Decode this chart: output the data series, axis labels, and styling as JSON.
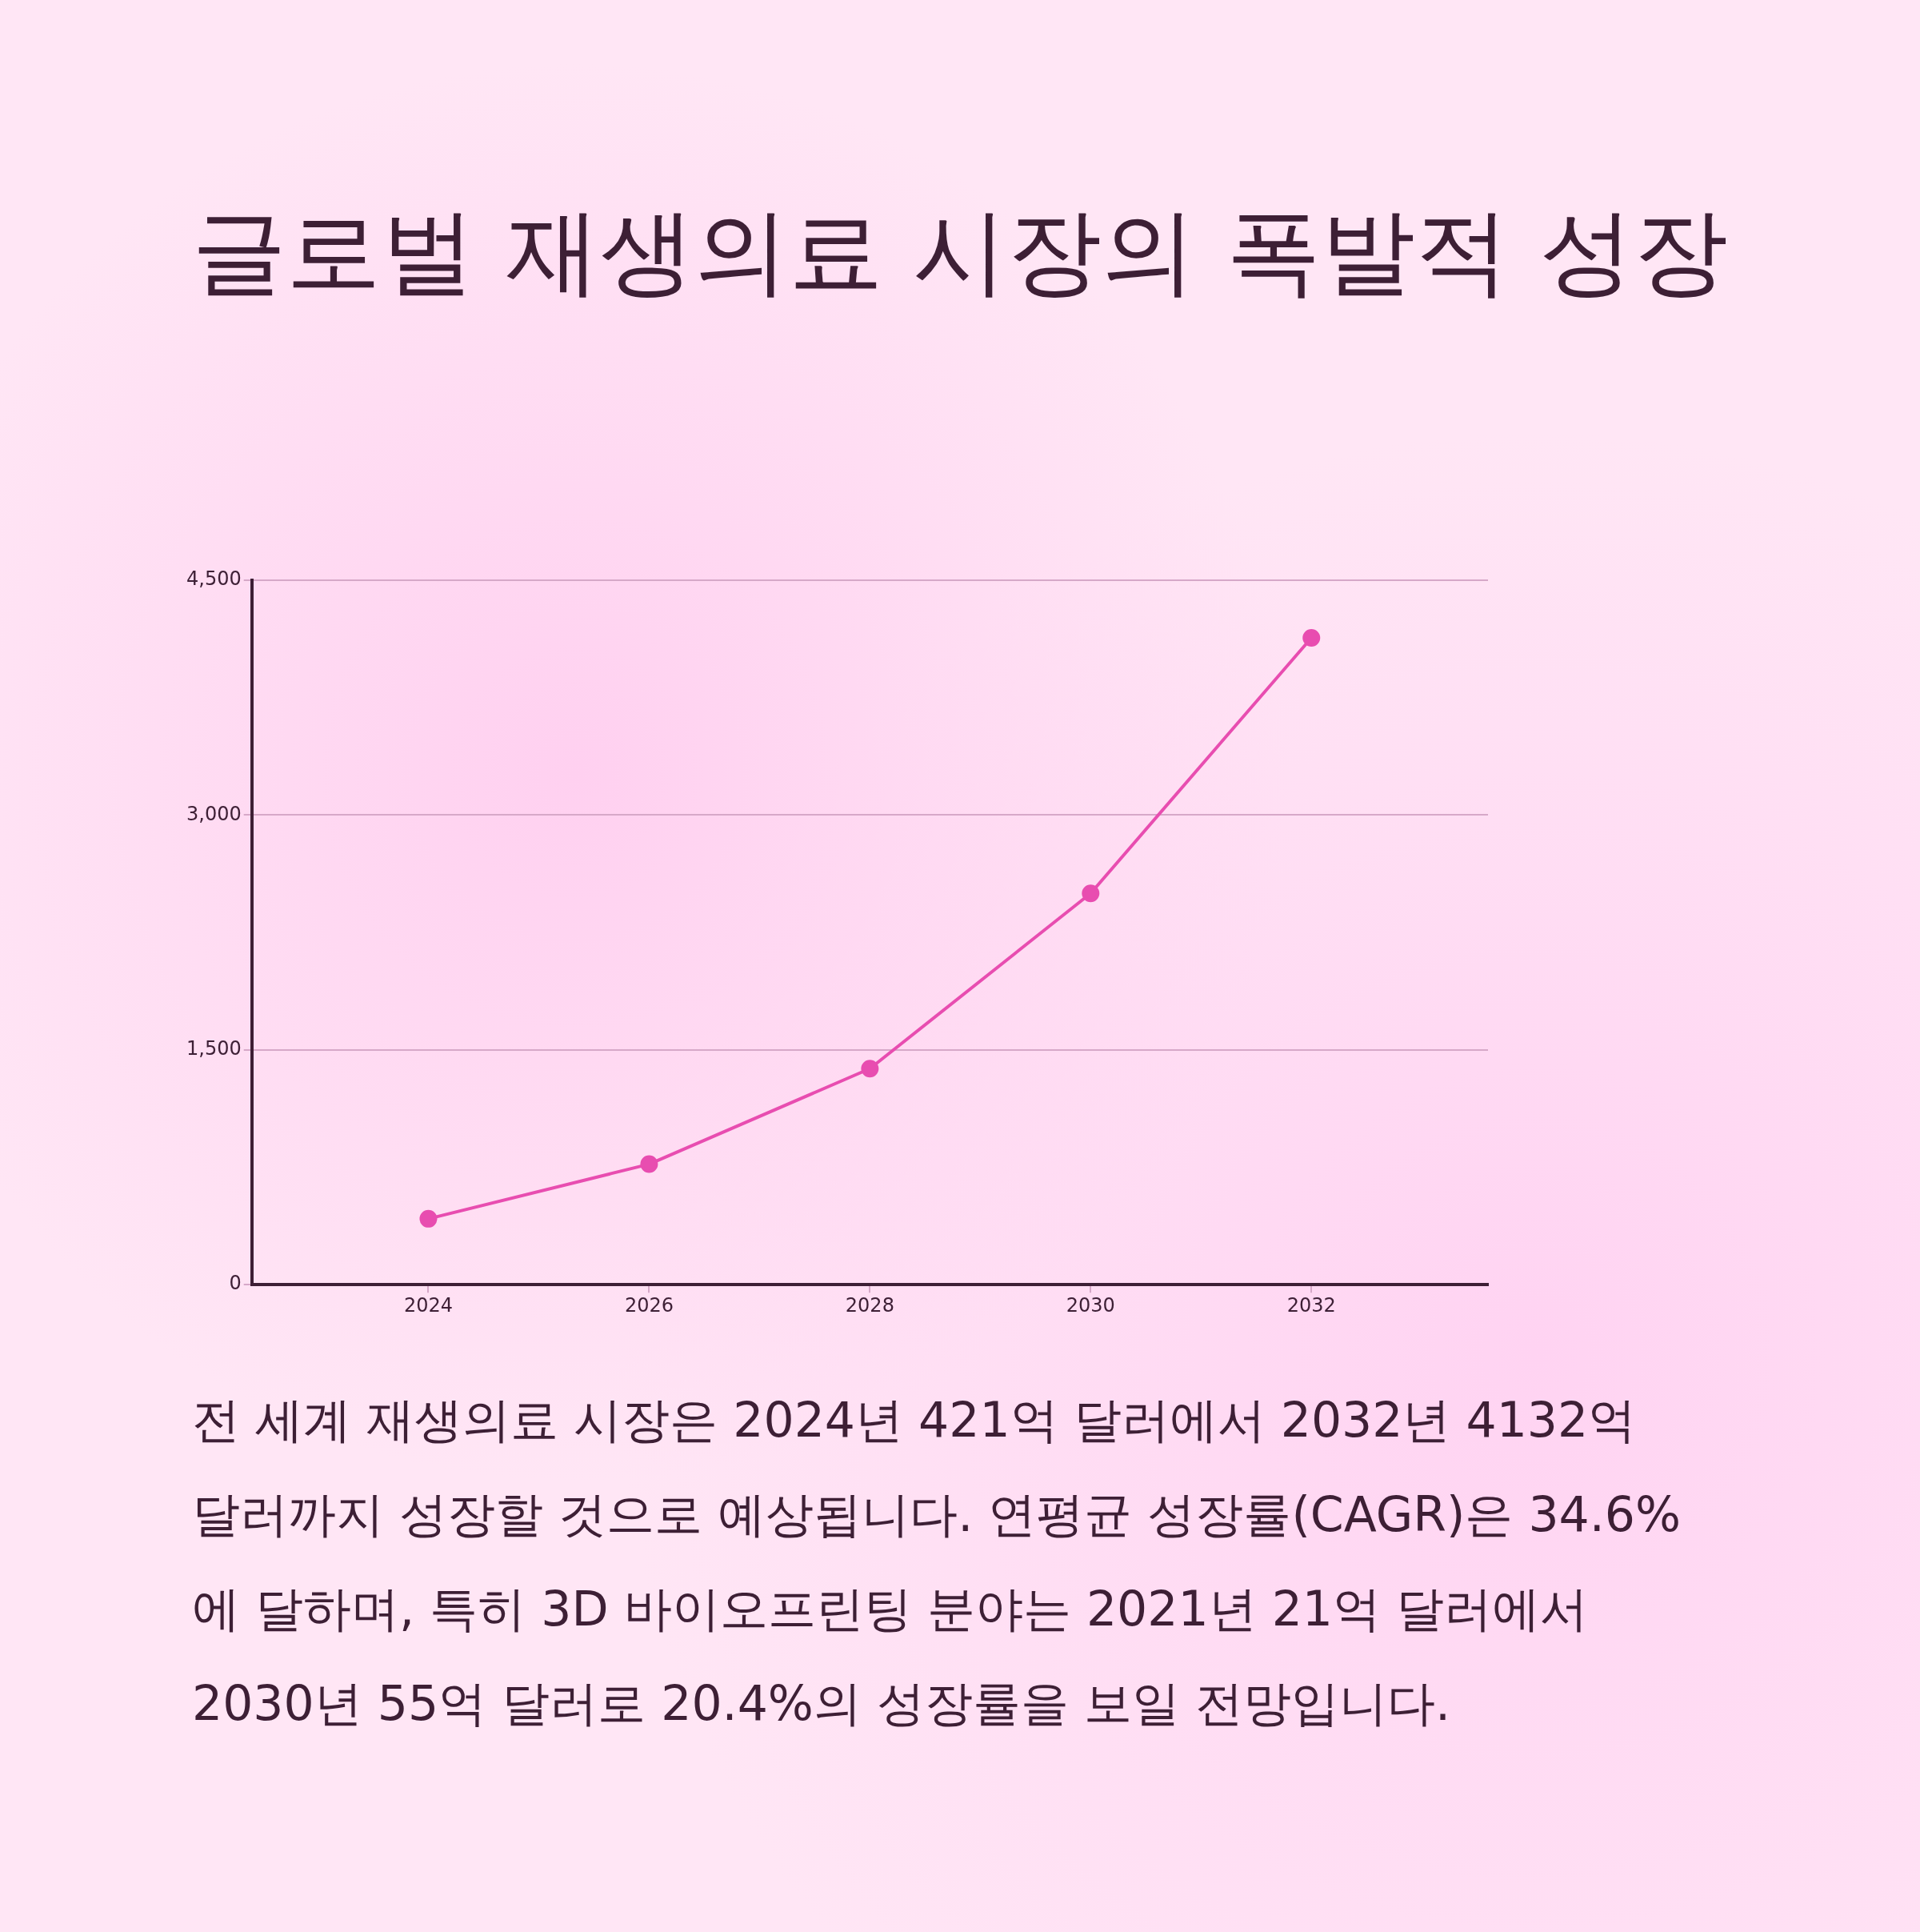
{
  "chart_data": {
    "type": "line",
    "title": "글로벌 재생의료 시장의 폭발적 성장",
    "x": [
      2024,
      2026,
      2028,
      2030,
      2032
    ],
    "series": [
      {
        "color": "#e84db0",
        "values": [
          421,
          770,
          1380,
          2500,
          4132
        ]
      }
    ],
    "xlim": [
      2022.4,
      2033.6
    ],
    "xticks": [
      2024,
      2026,
      2028,
      2030,
      2032
    ],
    "ylim": [
      0,
      4500
    ],
    "yticks": [
      0,
      {
        "value": 1500,
        "label": "1,500"
      },
      {
        "value": 3000,
        "label": "3,000"
      },
      {
        "value": 4500,
        "label": "4,500"
      }
    ],
    "grid": "y",
    "legend": false,
    "marker": "circle",
    "line_style": "solid",
    "annotations": [
      "전 세계 재생의료 시장은 2024년 421억 달러에서 2032년 4132억 달러까지 성장할 것으로 예상됩니다. 연평균 성장률(CAGR)은 34.6%에 달하며, 특히 3D 바이오프린팅 분야는 2021년 21억 달러에서 2030년 55억 달러로 20.4%의 성장률을 보일 전망입니다."
    ]
  }
}
